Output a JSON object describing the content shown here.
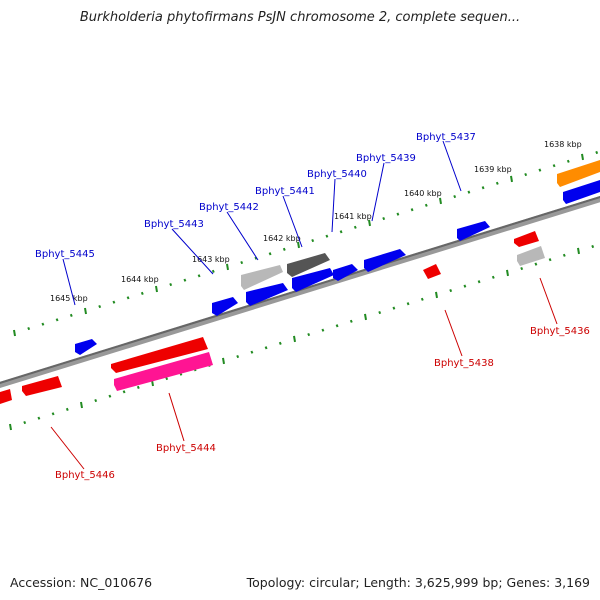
{
  "title": "Burkholderia phytofirmans PsJN chromosome 2, complete sequen...",
  "footer": {
    "accession": "Accession: NC_010676",
    "topology": "Topology: circular; Length: 3,625,999 bp; Genes: 3,169"
  },
  "colors": {
    "forward_gene": "#0000ee",
    "reverse_gene": "#ee0000",
    "forward_label": "#0000cc",
    "reverse_label": "#cc0000",
    "tick": "#228b22",
    "backbone": "#888888",
    "pseudo_gray": "#b8b8b8",
    "dark_gray": "#555555",
    "orange": "#ff8c00",
    "magenta": "#ff1493"
  },
  "kbp_labels": [
    "1645 kbp",
    "1644 kbp",
    "1643 kbp",
    "1642 kbp",
    "1641 kbp",
    "1640 kbp",
    "1639 kbp",
    "1638 kbp"
  ],
  "gene_labels": {
    "Bphyt_5445": "Bphyt_5445",
    "Bphyt_5443": "Bphyt_5443",
    "Bphyt_5442": "Bphyt_5442",
    "Bphyt_5441": "Bphyt_5441",
    "Bphyt_5440": "Bphyt_5440",
    "Bphyt_5439": "Bphyt_5439",
    "Bphyt_5437": "Bphyt_5437",
    "Bphyt_5446": "Bphyt_5446",
    "Bphyt_5444": "Bphyt_5444",
    "Bphyt_5438": "Bphyt_5438",
    "Bphyt_5436": "Bphyt_5436"
  }
}
